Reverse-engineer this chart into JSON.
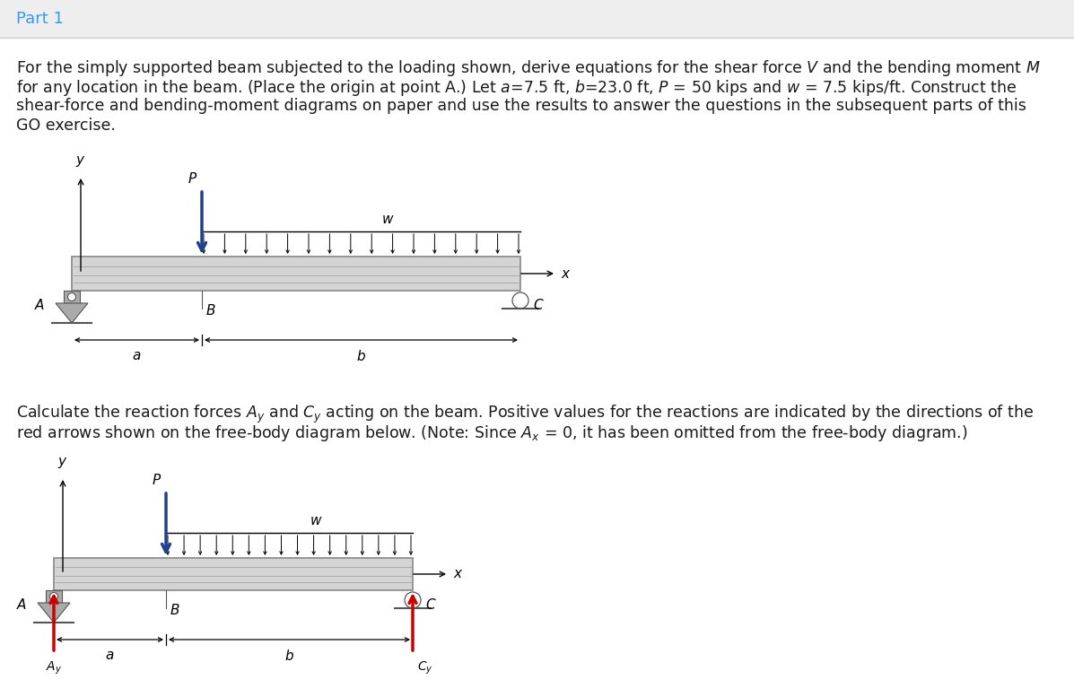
{
  "title": "Part 1",
  "title_color": "#3399ff",
  "header_bg": "#eeeeee",
  "main_bg": "#ffffff",
  "text_color": "#1a1a1a",
  "divider_color": "#cccccc",
  "beam_face": "#d4d4d4",
  "beam_edge": "#888888",
  "beam_inner": "#bbbbbb",
  "support_face": "#999999",
  "support_edge": "#555555",
  "P_color": "#1f3f8f",
  "w_color": "#111111",
  "reaction_color": "#cc0000",
  "para1_line1": "For the simply supported beam subjected to the loading shown, derive equations for the shear force V and the bending moment M",
  "para1_line2": "for any location in the beam. (Place the origin at point A.) Let a=7.5 ft, b=23.0 ft, P = 50 kips and w = 7.5 kips/ft. Construct the",
  "para1_line3": "shear-force and bending-moment diagrams on paper and use the results to answer the questions in the subsequent parts of this",
  "para1_line4": "GO exercise.",
  "para2_line1": "Calculate the reaction forces Ay and Cy acting on the beam. Positive values for the reactions are indicated by the directions of the",
  "para2_line2": "red arrows shown on the free-body diagram below. (Note: Since Ax = 0, it has been omitted from the free-body diagram.)"
}
